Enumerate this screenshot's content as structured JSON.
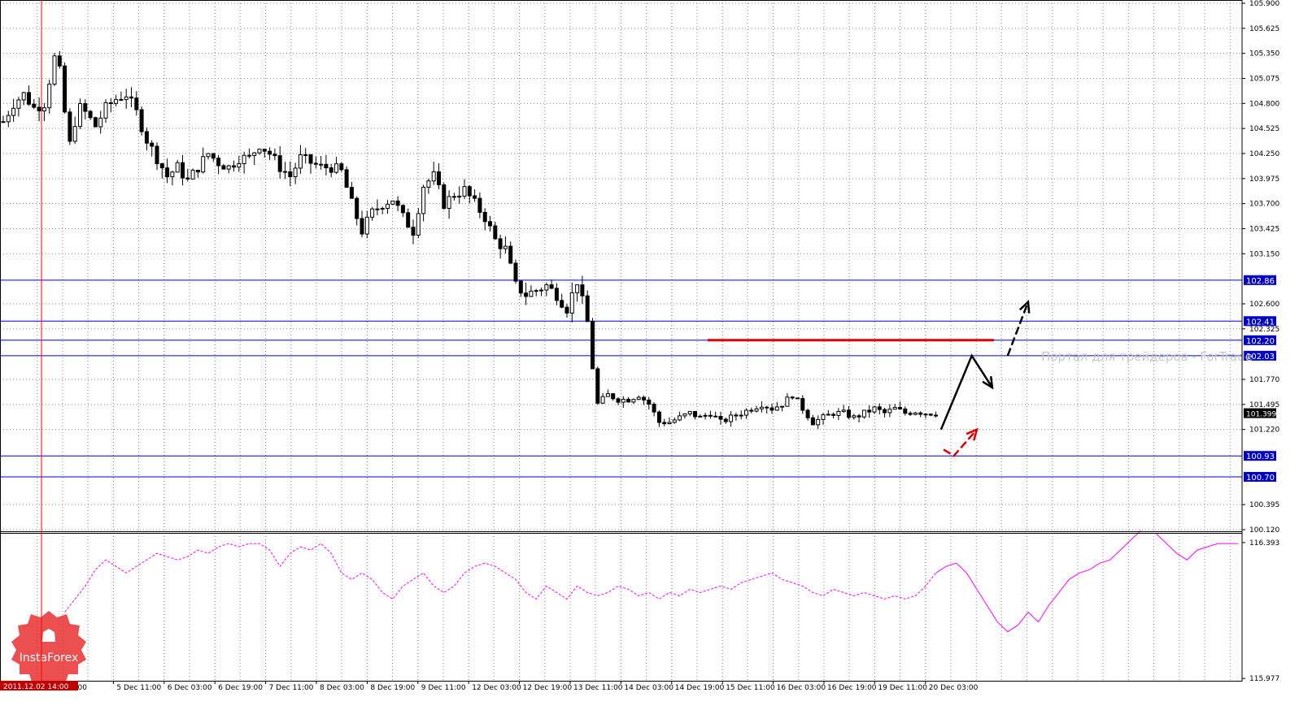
{
  "chart_data": [
    {
      "type": "candlestick",
      "title": "",
      "y_ticks": [
        "105.900",
        "105.625",
        "105.350",
        "105.075",
        "104.800",
        "104.525",
        "104.250",
        "103.975",
        "103.700",
        "103.425",
        "103.150",
        "102.600",
        "102.325",
        "101.770",
        "101.495",
        "101.220",
        "100.395",
        "100.120"
      ],
      "ylim": [
        100.12,
        105.9
      ],
      "x_ticks": [
        "19:00",
        "5 Dec 11:00",
        "6 Dec 03:00",
        "6 Dec 19:00",
        "7 Dec 11:00",
        "8 Dec 03:00",
        "8 Dec 19:00",
        "9 Dec 11:00",
        "12 Dec 03:00",
        "12 Dec 19:00",
        "13 Dec 11:00",
        "14 Dec 03:00",
        "14 Dec 19:00",
        "15 Dec 11:00",
        "16 Dec 03:00",
        "16 Dec 19:00",
        "19 Dec 11:00",
        "20 Dec 03:00"
      ],
      "horizontal_levels": [
        "102.86",
        "102.41",
        "102.20",
        "102.03",
        "100.93",
        "100.70"
      ],
      "current_price": "101.399",
      "resistance_segment": {
        "price": 102.2,
        "color": "#e00000"
      },
      "path": [
        [
          0,
          104.6
        ],
        [
          2,
          104.8
        ],
        [
          4,
          104.9
        ],
        [
          6,
          104.75
        ],
        [
          8,
          104.8
        ],
        [
          9,
          105.05
        ],
        [
          10,
          105.3
        ],
        [
          11,
          105.15
        ],
        [
          12,
          104.7
        ],
        [
          13,
          104.35
        ],
        [
          14,
          104.6
        ],
        [
          15,
          104.75
        ],
        [
          16,
          104.7
        ],
        [
          18,
          104.55
        ],
        [
          20,
          104.75
        ],
        [
          22,
          104.85
        ],
        [
          24,
          104.9
        ],
        [
          26,
          104.7
        ],
        [
          28,
          104.4
        ],
        [
          30,
          104.2
        ],
        [
          32,
          104.0
        ],
        [
          34,
          104.1
        ],
        [
          36,
          103.95
        ],
        [
          38,
          104.1
        ],
        [
          40,
          104.25
        ],
        [
          42,
          104.15
        ],
        [
          44,
          104.1
        ],
        [
          46,
          104.2
        ],
        [
          48,
          104.2
        ],
        [
          50,
          104.35
        ],
        [
          52,
          104.25
        ],
        [
          54,
          104.1
        ],
        [
          56,
          104.0
        ],
        [
          58,
          104.2
        ],
        [
          60,
          104.15
        ],
        [
          62,
          104.1
        ],
        [
          64,
          104.1
        ],
        [
          66,
          104.05
        ],
        [
          68,
          103.7
        ],
        [
          70,
          103.4
        ],
        [
          72,
          103.6
        ],
        [
          74,
          103.7
        ],
        [
          76,
          103.75
        ],
        [
          78,
          103.55
        ],
        [
          80,
          103.4
        ],
        [
          82,
          103.9
        ],
        [
          84,
          104.0
        ],
        [
          86,
          103.7
        ],
        [
          88,
          103.8
        ],
        [
          90,
          103.85
        ],
        [
          92,
          103.7
        ],
        [
          94,
          103.55
        ],
        [
          96,
          103.3
        ],
        [
          98,
          103.2
        ],
        [
          100,
          102.8
        ],
        [
          102,
          102.7
        ],
        [
          104,
          102.75
        ],
        [
          106,
          102.8
        ],
        [
          108,
          102.7
        ],
        [
          110,
          102.55
        ],
        [
          112,
          102.85
        ],
        [
          114,
          102.4
        ],
        [
          115,
          101.9
        ],
        [
          116,
          101.5
        ],
        [
          118,
          101.6
        ],
        [
          120,
          101.55
        ],
        [
          122,
          101.55
        ],
        [
          124,
          101.6
        ],
        [
          126,
          101.5
        ],
        [
          128,
          101.3
        ],
        [
          130,
          101.3
        ],
        [
          132,
          101.35
        ],
        [
          134,
          101.4
        ],
        [
          136,
          101.35
        ],
        [
          138,
          101.4
        ],
        [
          140,
          101.3
        ],
        [
          142,
          101.35
        ],
        [
          144,
          101.4
        ],
        [
          146,
          101.45
        ],
        [
          148,
          101.5
        ],
        [
          150,
          101.45
        ],
        [
          152,
          101.5
        ],
        [
          154,
          101.6
        ],
        [
          156,
          101.45
        ],
        [
          158,
          101.3
        ],
        [
          160,
          101.35
        ],
        [
          162,
          101.4
        ],
        [
          164,
          101.4
        ],
        [
          166,
          101.35
        ],
        [
          168,
          101.4
        ],
        [
          170,
          101.45
        ],
        [
          172,
          101.4
        ],
        [
          174,
          101.45
        ],
        [
          176,
          101.4
        ],
        [
          178,
          101.42
        ],
        [
          180,
          101.4
        ],
        [
          182,
          101.4
        ]
      ],
      "forecast_black": [
        [
          183,
          101.22
        ],
        [
          189,
          102.03
        ],
        [
          193,
          101.68
        ]
      ],
      "forecast_black_breakout": [
        [
          196,
          102.03
        ],
        [
          200,
          102.62
        ]
      ],
      "forecast_red": [
        [
          183.5,
          101.0
        ],
        [
          185.5,
          100.93
        ],
        [
          190,
          101.22
        ]
      ]
    },
    {
      "type": "line",
      "y_ticks": [
        "116.393",
        "115.977"
      ],
      "ylim": [
        115.97,
        116.42
      ],
      "current_value": "116.393",
      "series_dashed": [
        [
          12,
          116.18
        ],
        [
          14,
          116.22
        ],
        [
          16,
          116.26
        ],
        [
          18,
          116.31
        ],
        [
          20,
          116.34
        ],
        [
          22,
          116.32
        ],
        [
          24,
          116.3
        ],
        [
          26,
          116.32
        ],
        [
          28,
          116.34
        ],
        [
          30,
          116.36
        ],
        [
          32,
          116.35
        ],
        [
          34,
          116.34
        ],
        [
          36,
          116.35
        ],
        [
          38,
          116.37
        ],
        [
          40,
          116.36
        ],
        [
          42,
          116.38
        ],
        [
          44,
          116.39
        ],
        [
          46,
          116.38
        ],
        [
          48,
          116.39
        ],
        [
          50,
          116.39
        ],
        [
          52,
          116.37
        ],
        [
          54,
          116.32
        ],
        [
          56,
          116.36
        ],
        [
          58,
          116.38
        ],
        [
          60,
          116.37
        ],
        [
          62,
          116.39
        ],
        [
          64,
          116.36
        ],
        [
          66,
          116.3
        ],
        [
          68,
          116.28
        ],
        [
          70,
          116.3
        ],
        [
          72,
          116.28
        ],
        [
          74,
          116.24
        ],
        [
          76,
          116.22
        ],
        [
          78,
          116.26
        ],
        [
          80,
          116.28
        ],
        [
          82,
          116.3
        ],
        [
          84,
          116.26
        ],
        [
          86,
          116.24
        ],
        [
          88,
          116.26
        ],
        [
          90,
          116.3
        ],
        [
          92,
          116.32
        ],
        [
          94,
          116.33
        ],
        [
          96,
          116.32
        ],
        [
          98,
          116.3
        ],
        [
          100,
          116.28
        ],
        [
          102,
          116.24
        ],
        [
          104,
          116.22
        ],
        [
          106,
          116.26
        ],
        [
          108,
          116.24
        ],
        [
          110,
          116.22
        ],
        [
          112,
          116.26
        ],
        [
          114,
          116.24
        ],
        [
          116,
          116.23
        ],
        [
          118,
          116.24
        ],
        [
          120,
          116.26
        ],
        [
          122,
          116.25
        ],
        [
          124,
          116.23
        ],
        [
          126,
          116.24
        ],
        [
          128,
          116.22
        ],
        [
          130,
          116.24
        ],
        [
          132,
          116.23
        ],
        [
          134,
          116.25
        ],
        [
          136,
          116.24
        ],
        [
          138,
          116.25
        ],
        [
          140,
          116.26
        ],
        [
          142,
          116.25
        ],
        [
          144,
          116.27
        ],
        [
          146,
          116.28
        ],
        [
          148,
          116.29
        ],
        [
          150,
          116.3
        ],
        [
          152,
          116.28
        ],
        [
          154,
          116.27
        ],
        [
          156,
          116.26
        ],
        [
          158,
          116.24
        ],
        [
          160,
          116.23
        ],
        [
          162,
          116.25
        ],
        [
          164,
          116.24
        ],
        [
          166,
          116.23
        ],
        [
          168,
          116.24
        ],
        [
          170,
          116.23
        ],
        [
          172,
          116.22
        ],
        [
          174,
          116.23
        ],
        [
          176,
          116.22
        ],
        [
          178,
          116.23
        ],
        [
          180,
          116.26
        ],
        [
          182,
          116.3
        ]
      ],
      "series_solid": [
        [
          182,
          116.3
        ],
        [
          184,
          116.32
        ],
        [
          186,
          116.33
        ],
        [
          188,
          116.3
        ],
        [
          190,
          116.25
        ],
        [
          192,
          116.2
        ],
        [
          194,
          116.15
        ],
        [
          196,
          116.12
        ],
        [
          198,
          116.14
        ],
        [
          200,
          116.18
        ],
        [
          202,
          116.15
        ],
        [
          204,
          116.2
        ],
        [
          206,
          116.24
        ],
        [
          208,
          116.28
        ],
        [
          210,
          116.3
        ],
        [
          212,
          116.31
        ],
        [
          214,
          116.33
        ],
        [
          216,
          116.34
        ],
        [
          218,
          116.37
        ],
        [
          220,
          116.4
        ],
        [
          222,
          116.43
        ]
      ],
      "series_solid_2": [
        [
          225,
          116.42
        ],
        [
          227,
          116.39
        ],
        [
          229,
          116.36
        ],
        [
          231,
          116.34
        ],
        [
          233,
          116.37
        ],
        [
          235,
          116.38
        ],
        [
          237,
          116.39
        ],
        [
          239,
          116.39
        ],
        [
          241,
          116.39
        ]
      ]
    }
  ],
  "vertical_marker_time": "2011.12.02 14:00",
  "watermark": "Портал для трейдеров - ForTrade",
  "logo_text": "InstaForex",
  "colors": {
    "grid": "#8a8a8a",
    "candles": "#000000",
    "levels": "#0000cc",
    "level_label_bg": "#0000cc",
    "level_label_text": "#ffffff",
    "resistance": "#e00000",
    "oscillator": "#ff00ff",
    "vertical_marker": "#ff0000",
    "logo": "#e83030"
  }
}
